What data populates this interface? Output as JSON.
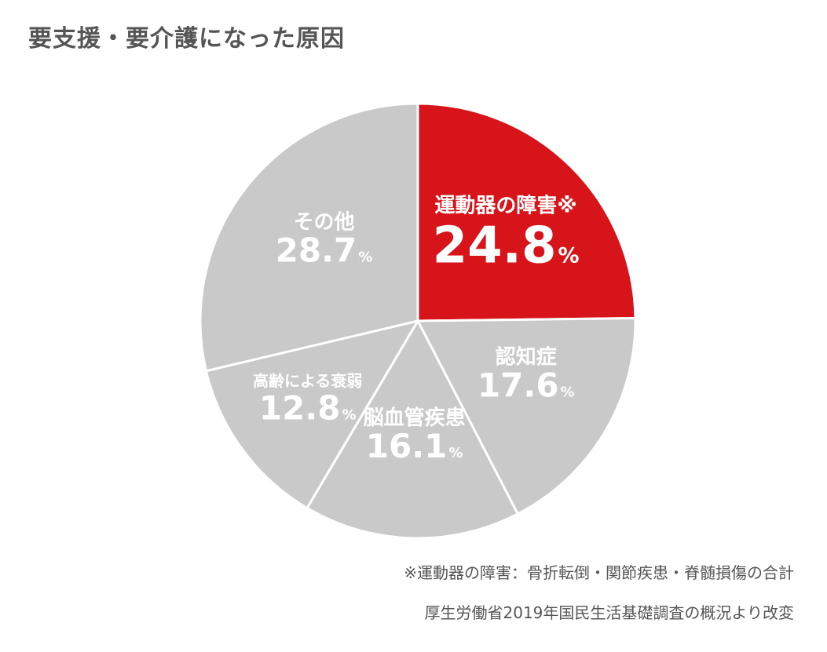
{
  "page": {
    "title": "要支援・要介護になった原因",
    "note": "※運動器の障害：骨折転倒・関節疾患・脊髄損傷の合計",
    "source": "厚生労働省2019年国民生活基礎調査の概況より改変"
  },
  "chart_data": {
    "type": "pie",
    "title": "要支援・要介護になった原因",
    "unit": "%",
    "start": "12 o'clock",
    "direction": "clockwise",
    "slices": [
      {
        "label": "運動器の障害※",
        "value": 24.8,
        "color": "#d7141a",
        "highlight": true
      },
      {
        "label": "認知症",
        "value": 17.6,
        "color": "#c9c9c9"
      },
      {
        "label": "脳血管疾患",
        "value": 16.1,
        "color": "#c9c9c9"
      },
      {
        "label": "高齢による衰弱",
        "value": 12.8,
        "color": "#c9c9c9"
      },
      {
        "label": "その他",
        "value": 28.7,
        "color": "#c9c9c9"
      }
    ]
  }
}
